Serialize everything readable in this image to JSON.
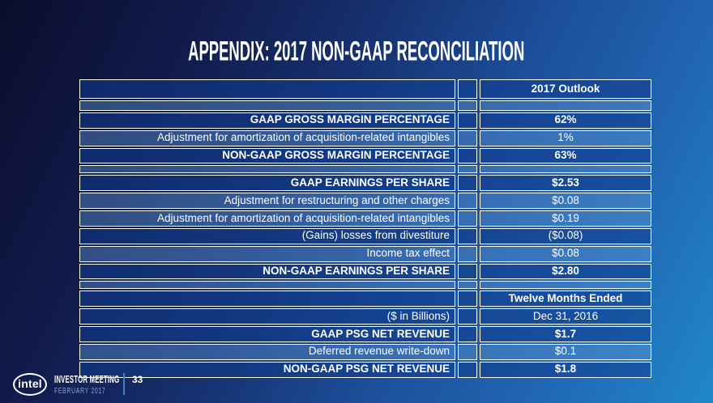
{
  "slide": {
    "title": "APPENDIX: 2017 NON-GAAP RECONCILIATION"
  },
  "table": {
    "rows": [
      {
        "label": "",
        "value": "2017 Outlook",
        "bold": true,
        "shade": "dark",
        "kind": "header"
      },
      {
        "label": "",
        "value": "",
        "bold": false,
        "shade": "light",
        "kind": "empty-tall"
      },
      {
        "label": "GAAP GROSS MARGIN PERCENTAGE",
        "value": "62%",
        "bold": true,
        "shade": "dark"
      },
      {
        "label": "Adjustment for amortization of acquisition-related intangibles",
        "value": "1%",
        "bold": false,
        "shade": "light"
      },
      {
        "label": "NON-GAAP GROSS MARGIN PERCENTAGE",
        "value": "63%",
        "bold": true,
        "shade": "dark"
      },
      {
        "label": "",
        "value": "",
        "bold": false,
        "shade": "light",
        "kind": "empty-mid"
      },
      {
        "label": "GAAP EARNINGS PER SHARE",
        "value": "$2.53",
        "bold": true,
        "shade": "dark"
      },
      {
        "label": "Adjustment for restructuring and other charges",
        "value": "$0.08",
        "bold": false,
        "shade": "light"
      },
      {
        "label": "Adjustment for amortization of acquisition-related intangibles",
        "value": "$0.19",
        "bold": false,
        "shade": "light"
      },
      {
        "label": "(Gains) losses from divestiture",
        "value": "($0.08)",
        "bold": false,
        "shade": "dark"
      },
      {
        "label": "Income tax effect",
        "value": "$0.08",
        "bold": false,
        "shade": "light"
      },
      {
        "label": "NON-GAAP EARNINGS PER SHARE",
        "value": "$2.80",
        "bold": true,
        "shade": "dark"
      },
      {
        "label": "",
        "value": "",
        "bold": false,
        "shade": "light",
        "kind": "empty-mid"
      },
      {
        "label": "",
        "value": "Twelve Months Ended",
        "bold": true,
        "shade": "dark"
      },
      {
        "label": "($ in Billions)",
        "value": "Dec 31, 2016",
        "bold": false,
        "shade": "dark"
      },
      {
        "label": "GAAP PSG NET REVENUE",
        "value": "$1.7",
        "bold": true,
        "shade": "dark"
      },
      {
        "label": "Deferred revenue write-down",
        "value": "$0.1",
        "bold": false,
        "shade": "light"
      },
      {
        "label": "NON-GAAP PSG NET REVENUE",
        "value": "$1.8",
        "bold": true,
        "shade": "dark"
      }
    ]
  },
  "footer": {
    "logo": "intel",
    "event": "INVESTOR MEETING",
    "date": "FEBRUARY 2017",
    "page": "33"
  },
  "colors": {
    "background_top_left": "#0a0e2c",
    "background_bottom_right": "#1f88c9",
    "table_border": "#ffffff",
    "text": "#ffffff",
    "footer_date_text": "#8fa3c4",
    "footer_separator": "#3f7fc4"
  }
}
